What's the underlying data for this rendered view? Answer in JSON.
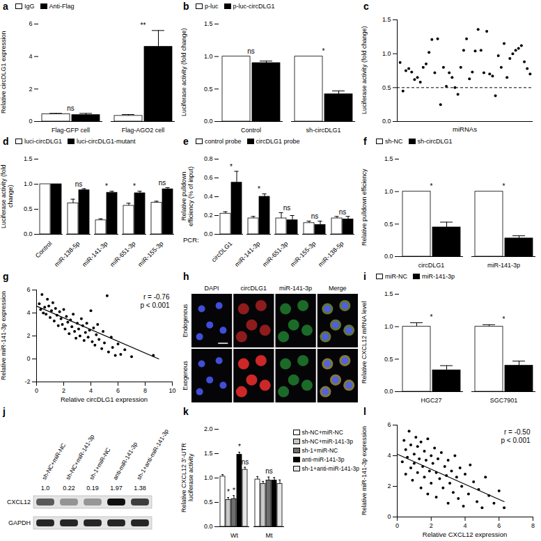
{
  "chart_data": [
    {
      "panel": "a",
      "type": "bar",
      "y_label": "Relative circDLG1 expression",
      "categories": [
        "Flag-GFP cell",
        "Flag-AGO2 cell"
      ],
      "series": [
        {
          "name": "IgG",
          "color": "#ffffff",
          "values": [
            0.45,
            0.35
          ],
          "errors": [
            0.05,
            0.08
          ]
        },
        {
          "name": "Anti-Flag",
          "color": "#000000",
          "values": [
            0.4,
            4.6
          ],
          "errors": [
            0.1,
            1.0
          ]
        }
      ],
      "ylim": [
        0,
        6
      ],
      "yticks": [
        0,
        2,
        4,
        6
      ],
      "legend": "top",
      "annotations": [
        {
          "category": "Flag-GFP cell",
          "text": "ns"
        },
        {
          "category": "Flag-AGO2 cell",
          "text": "**"
        }
      ]
    },
    {
      "panel": "b",
      "type": "bar",
      "y_label": "Luciferase activity (fold change)",
      "categories": [
        "Control",
        "sh-circDLG1"
      ],
      "series": [
        {
          "name": "p-luc",
          "color": "#ffffff",
          "values": [
            1.0,
            1.0
          ],
          "errors": [
            0,
            0
          ]
        },
        {
          "name": "p-luc-circDLG1",
          "color": "#000000",
          "values": [
            0.9,
            0.42
          ],
          "errors": [
            0.03,
            0.05
          ]
        }
      ],
      "ylim": [
        0,
        1.5
      ],
      "yticks": [
        {
          "value": 0,
          "label": "0.0"
        },
        0.5,
        {
          "value": 1,
          "label": "1.0"
        },
        1.5
      ],
      "legend": "top",
      "annotations": [
        {
          "category": "Control",
          "text": "ns"
        },
        {
          "category": "sh-circDLG1",
          "text": "*"
        }
      ]
    },
    {
      "panel": "c",
      "type": "scatter",
      "y_label": "Luciferase activity (fold change)",
      "x_label": "miRNAs",
      "x": [
        1,
        2,
        3,
        4,
        5,
        6,
        7,
        8,
        9,
        10,
        11,
        12,
        13,
        14,
        15,
        16,
        17,
        18,
        19,
        20,
        21,
        22,
        23,
        24,
        25,
        26,
        27,
        28,
        29,
        30,
        31,
        32,
        33,
        34,
        35,
        36,
        37,
        38,
        39,
        40,
        41,
        42,
        43,
        44,
        45,
        46
      ],
      "values": [
        0.87,
        0.45,
        0.75,
        0.78,
        0.73,
        0.62,
        0.65,
        0.58,
        0.8,
        0.85,
        1.02,
        1.21,
        0.72,
        1.22,
        0.25,
        0.8,
        0.52,
        0.72,
        0.65,
        0.5,
        0.4,
        0.8,
        1.05,
        1.22,
        0.63,
        0.73,
        1.04,
        1.36,
        1.05,
        0.72,
        1.33,
        0.7,
        0.67,
        0.38,
        0.97,
        0.8,
        1.15,
        0.65,
        0.93,
        1.0,
        1.05,
        1.08,
        1.12,
        0.88,
        0.78,
        0.7
      ],
      "xlim": [
        0,
        47
      ],
      "ylim": [
        0,
        1.5
      ],
      "yticks": [
        {
          "value": 0,
          "label": "0.0"
        },
        0.5,
        {
          "value": 1,
          "label": "1.0"
        },
        1.5
      ],
      "tick_labels": "y",
      "threshold": 0.5
    },
    {
      "panel": "d",
      "type": "bar",
      "y_label": "Luciferase activity (fold change)",
      "categories": [
        "Control",
        "miR-138-5p",
        "miR-141-3p",
        "miR-651-3p",
        "miR-155-3p"
      ],
      "series": [
        {
          "name": "luci-circDLG1",
          "color": "#ffffff",
          "values": [
            1.0,
            0.62,
            0.28,
            0.57,
            0.63
          ],
          "errors": [
            0,
            0.08,
            0.03,
            0.05,
            0.03
          ]
        },
        {
          "name": "luci-circDLG1-mutant",
          "color": "#000000",
          "values": [
            1.0,
            0.88,
            0.83,
            0.82,
            0.9
          ],
          "errors": [
            0,
            0.03,
            0.03,
            0.04,
            0.03
          ]
        }
      ],
      "ylim": [
        0,
        1.5
      ],
      "yticks": [
        {
          "value": 0,
          "label": "0.0"
        },
        0.5,
        {
          "value": 1,
          "label": "1.0"
        },
        1.5
      ],
      "legend": "top",
      "annotations": [
        {
          "category": "miR-138-5p",
          "text": "ns"
        },
        {
          "category": "miR-141-3p",
          "text": "*"
        },
        {
          "category": "miR-651-3p",
          "text": "*"
        },
        {
          "category": "miR-155-3p",
          "text": "ns"
        }
      ]
    },
    {
      "panel": "e",
      "type": "bar",
      "y_label": "Relative pulldown efficiency (% of input)",
      "x_label": "PCR:",
      "categories": [
        "circDLG1",
        "miR-141-3p",
        "miR-651-3p",
        "miR-155-3p",
        "miR-138-5p"
      ],
      "series": [
        {
          "name": "control probe",
          "color": "#ffffff",
          "values": [
            0.22,
            0.17,
            0.17,
            0.12,
            0.17
          ],
          "errors": [
            0.02,
            0.02,
            0.06,
            0.02,
            0.02
          ]
        },
        {
          "name": "circDLG1 probe",
          "color": "#000000",
          "values": [
            0.55,
            0.4,
            0.15,
            0.1,
            0.16
          ],
          "errors": [
            0.12,
            0.03,
            0.05,
            0.04,
            0.03
          ]
        }
      ],
      "ylim": [
        0,
        0.8
      ],
      "yticks": [
        {
          "value": 0,
          "label": "0.0"
        },
        0.2,
        0.4,
        0.6,
        0.8
      ],
      "legend": "top",
      "annotations": [
        {
          "category": "circDLG1",
          "text": "*"
        },
        {
          "category": "miR-141-3p",
          "text": "*"
        },
        {
          "category": "miR-651-3p",
          "text": "ns"
        },
        {
          "category": "miR-155-3p",
          "text": "ns"
        },
        {
          "category": "miR-138-5p",
          "text": "ns"
        }
      ]
    },
    {
      "panel": "f",
      "type": "bar",
      "y_label": "Relative pulldown efficiency",
      "categories": [
        "circDLG1",
        "miR-141-3p"
      ],
      "series": [
        {
          "name": "sh-NC",
          "color": "#ffffff",
          "values": [
            1.0,
            1.0
          ],
          "errors": [
            0,
            0
          ]
        },
        {
          "name": "sh-circDLG1",
          "color": "#000000",
          "values": [
            0.45,
            0.28
          ],
          "errors": [
            0.08,
            0.04
          ]
        }
      ],
      "ylim": [
        0,
        1.5
      ],
      "yticks": [
        {
          "value": 0,
          "label": "0.0"
        },
        0.5,
        {
          "value": 1,
          "label": "1.0"
        },
        1.5
      ],
      "legend": "top",
      "annotations": [
        {
          "category": "circDLG1",
          "text": "*"
        },
        {
          "category": "miR-141-3p",
          "text": "*"
        }
      ]
    },
    {
      "panel": "g",
      "type": "scatter",
      "y_label": "Relative miR-141-3p expression",
      "x_label": "Relative circDLG1 expression",
      "x": [
        0.2,
        0.3,
        0.4,
        0.5,
        0.6,
        0.7,
        0.8,
        0.9,
        1.0,
        1.1,
        1.2,
        1.3,
        1.4,
        1.5,
        1.6,
        1.7,
        1.8,
        1.9,
        2.0,
        2.1,
        2.2,
        2.3,
        2.4,
        2.5,
        2.6,
        2.7,
        2.8,
        2.9,
        3.0,
        3.1,
        3.2,
        3.3,
        3.4,
        3.5,
        3.6,
        3.7,
        3.8,
        3.9,
        4.0,
        4.1,
        4.2,
        4.3,
        4.4,
        4.5,
        4.6,
        4.8,
        4.9,
        5.0,
        5.2,
        5.3,
        5.5,
        5.6,
        5.8,
        6.0,
        6.2,
        6.5,
        7.0,
        8.6
      ],
      "values": [
        4.8,
        4.3,
        5.6,
        4.0,
        4.5,
        3.9,
        5.2,
        4.6,
        3.6,
        4.2,
        4.9,
        3.3,
        4.4,
        3.8,
        2.9,
        4.1,
        3.5,
        3.0,
        4.3,
        2.6,
        3.7,
        3.2,
        2.2,
        3.4,
        2.8,
        3.9,
        2.4,
        1.8,
        3.1,
        2.6,
        2.0,
        3.5,
        2.9,
        1.6,
        2.3,
        3.1,
        1.9,
        2.5,
        4.2,
        1.5,
        2.7,
        1.2,
        2.1,
        3.0,
        1.7,
        0.9,
        2.4,
        1.4,
        5.5,
        0.6,
        1.9,
        1.0,
        0.3,
        1.3,
        0.4,
        0.8,
        0.2,
        0.3
      ],
      "fit": {
        "x": [
          0,
          9
        ],
        "values": [
          4.6,
          0.0
        ]
      },
      "xlim": [
        0,
        10
      ],
      "ylim": [
        -2,
        6
      ],
      "xticks": [
        0,
        2,
        4,
        6,
        8,
        10
      ],
      "yticks": [
        -2,
        0,
        2,
        4,
        6
      ],
      "annotations": [
        "r = -0.76",
        "p < 0.001"
      ]
    },
    {
      "panel": "h",
      "type": "image",
      "columns": [
        "DAPI",
        "circDLG1",
        "miR-141-3p",
        "Merge"
      ],
      "rows": [
        "Endogenous",
        "Exogenous"
      ]
    },
    {
      "panel": "i",
      "type": "bar",
      "y_label": "Relative CXCL12 mRNA level",
      "categories": [
        "HGC27",
        "SGC7901"
      ],
      "series": [
        {
          "name": "miR-NC",
          "color": "#ffffff",
          "values": [
            1.0,
            1.0
          ],
          "errors": [
            0.06,
            0.03
          ]
        },
        {
          "name": "miR-141-3p",
          "color": "#000000",
          "values": [
            0.33,
            0.4
          ],
          "errors": [
            0.07,
            0.07
          ]
        }
      ],
      "ylim": [
        0,
        1.5
      ],
      "yticks": [
        {
          "value": 0,
          "label": "0.0"
        },
        0.5,
        {
          "value": 1,
          "label": "1.0"
        },
        1.5
      ],
      "legend": "top",
      "annotations": [
        {
          "category": "HGC27",
          "text": "*"
        },
        {
          "category": "SGC7901",
          "text": "*"
        }
      ]
    },
    {
      "panel": "j",
      "type": "western_blot",
      "lanes": [
        "sh-NC+miR-NC",
        "sh-NC+miR-141-3p",
        "sh-1+miR-NC",
        "anti-miR-141-3p",
        "sh-1+anti-miR-141-3p"
      ],
      "bands": [
        "CXCL12",
        "GAPDH"
      ],
      "values": [
        1.0,
        0.22,
        0.19,
        1.97,
        1.38
      ],
      "value_labels": [
        "1.0",
        "0.22",
        "0.19",
        "1.97",
        "1.38"
      ]
    },
    {
      "panel": "k",
      "type": "bar",
      "y_label": "Relative CXCL12 3'-UTR luciferase activity",
      "categories": [
        "Wt",
        "Mt"
      ],
      "series": [
        {
          "name": "sh-NC+miR-NC",
          "color": "#ffffff",
          "values": [
            1.03,
            0.97
          ],
          "errors": [
            0.04,
            0.06
          ]
        },
        {
          "name": "sh-NC+miR-141-3p",
          "color": "#c8c8c8",
          "values": [
            0.55,
            0.88
          ],
          "errors": [
            0.05,
            0.05
          ]
        },
        {
          "name": "sh-1+miR-NC",
          "color": "#6e6e6e",
          "values": [
            0.57,
            0.95
          ],
          "errors": [
            0.07,
            0.07
          ]
        },
        {
          "name": "anti-miR-141-3p",
          "color": "#000000",
          "values": [
            1.48,
            0.95
          ],
          "errors": [
            0.05,
            0.06
          ]
        },
        {
          "name": "sh-1+anti-miR-141-3p",
          "color": "#e6e6e6",
          "values": [
            1.17,
            0.88
          ],
          "errors": [
            0.05,
            0.08
          ]
        }
      ],
      "ylim": [
        0,
        2
      ],
      "yticks": [
        {
          "value": 0,
          "label": "0.0"
        },
        0.5,
        {
          "value": 1,
          "label": "1.0"
        },
        1.5,
        {
          "value": 2,
          "label": "2.0"
        }
      ],
      "legend": "right",
      "annotations": [
        {
          "category": "Wt",
          "series": "sh-NC+miR-141-3p",
          "text": "*"
        },
        {
          "category": "Wt",
          "series": "sh-1+miR-NC",
          "text": "*"
        },
        {
          "category": "Wt",
          "series": "anti-miR-141-3p",
          "text": "*"
        },
        {
          "category": "Wt",
          "series": "sh-1+anti-miR-141-3p",
          "text": "ns"
        },
        {
          "category": "Mt",
          "text": "ns"
        }
      ]
    },
    {
      "panel": "l",
      "type": "scatter",
      "y_label": "Relative miR-141-3p expression",
      "x_label": "Relative CXCL12 expression",
      "x": [
        0.3,
        0.4,
        0.5,
        0.5,
        0.6,
        0.7,
        0.8,
        0.8,
        0.9,
        1.0,
        1.0,
        1.1,
        1.2,
        1.2,
        1.3,
        1.4,
        1.4,
        1.5,
        1.6,
        1.6,
        1.7,
        1.8,
        1.8,
        1.9,
        2.0,
        2.0,
        2.1,
        2.2,
        2.3,
        2.3,
        2.4,
        2.5,
        2.6,
        2.7,
        2.8,
        2.9,
        3.0,
        3.0,
        3.1,
        3.2,
        3.3,
        3.4,
        3.5,
        3.6,
        3.7,
        3.8,
        3.9,
        4.0,
        4.2,
        4.3,
        4.5,
        4.7,
        4.8,
        5.0,
        5.2,
        5.4,
        5.7,
        6.0,
        6.3
      ],
      "values": [
        3.6,
        5.0,
        2.8,
        4.4,
        3.9,
        5.6,
        3.2,
        4.7,
        2.4,
        4.1,
        3.5,
        5.2,
        2.9,
        4.6,
        3.8,
        1.9,
        4.9,
        3.3,
        2.6,
        4.3,
        3.7,
        1.5,
        5.1,
        3.0,
        4.0,
        2.2,
        3.5,
        4.5,
        1.3,
        2.9,
        3.8,
        2.5,
        4.2,
        1.9,
        3.3,
        2.7,
        0.9,
        3.7,
        2.2,
        3.0,
        1.6,
        4.0,
        2.6,
        1.2,
        3.2,
        2.0,
        0.7,
        2.8,
        1.5,
        3.4,
        2.3,
        1.0,
        1.8,
        0.6,
        2.6,
        1.4,
        0.9,
        1.7,
        0.6
      ],
      "fit": {
        "x": [
          0,
          6.3
        ],
        "values": [
          4.1,
          1.0
        ]
      },
      "xlim": [
        0,
        8
      ],
      "ylim": [
        0,
        6
      ],
      "xticks": [
        0,
        2,
        4,
        6,
        8
      ],
      "yticks": [
        0,
        2,
        4,
        6
      ],
      "annotations": [
        "r = -0.50",
        "p < 0.001"
      ]
    }
  ]
}
